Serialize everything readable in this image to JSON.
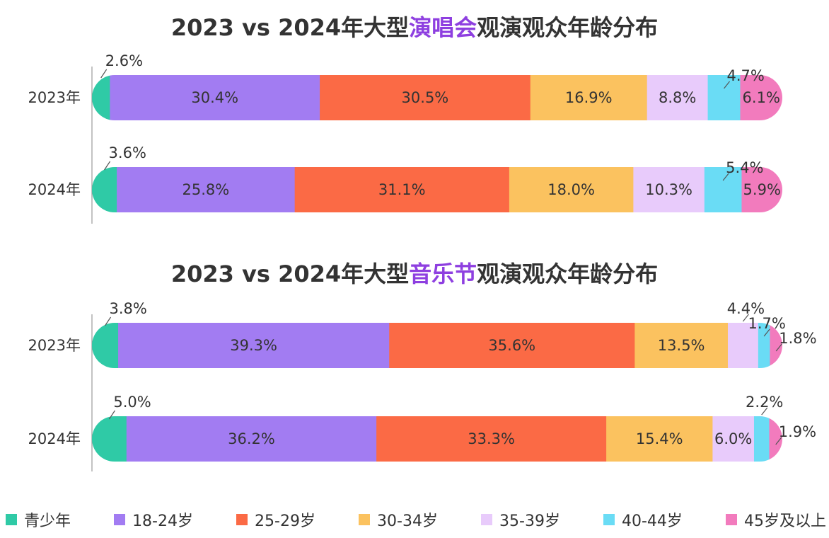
{
  "chart_data": [
    {
      "type": "bar",
      "title_parts": [
        "2023 vs 2024年大型",
        "演唱会",
        "观演观众年龄分布"
      ],
      "categories": [
        "2023年",
        "2024年"
      ],
      "series": [
        {
          "name": "青少年",
          "values": [
            2.6,
            3.6
          ]
        },
        {
          "name": "18-24岁",
          "values": [
            30.4,
            25.8
          ]
        },
        {
          "name": "25-29岁",
          "values": [
            30.5,
            31.1
          ]
        },
        {
          "name": "30-34岁",
          "values": [
            16.9,
            18.0
          ]
        },
        {
          "name": "35-39岁",
          "values": [
            8.8,
            10.3
          ]
        },
        {
          "name": "40-44岁",
          "values": [
            4.7,
            5.4
          ]
        },
        {
          "name": "45岁及以上",
          "values": [
            6.1,
            5.9
          ]
        }
      ],
      "labels": [
        [
          "2.6%",
          "30.4%",
          "30.5%",
          "16.9%",
          "8.8%",
          "4.7%",
          "6.1%"
        ],
        [
          "3.6%",
          "25.8%",
          "31.1%",
          "18.0%",
          "10.3%",
          "5.4%",
          "5.9%"
        ]
      ],
      "stacked": true,
      "orientation": "horizontal",
      "xlim": [
        0,
        100
      ]
    },
    {
      "type": "bar",
      "title_parts": [
        "2023 vs 2024年大型",
        "音乐节",
        "观演观众年龄分布"
      ],
      "categories": [
        "2023年",
        "2024年"
      ],
      "series": [
        {
          "name": "青少年",
          "values": [
            3.8,
            5.0
          ]
        },
        {
          "name": "18-24岁",
          "values": [
            39.3,
            36.2
          ]
        },
        {
          "name": "25-29岁",
          "values": [
            35.6,
            33.3
          ]
        },
        {
          "name": "30-34岁",
          "values": [
            13.5,
            15.4
          ]
        },
        {
          "name": "35-39岁",
          "values": [
            4.4,
            6.0
          ]
        },
        {
          "name": "40-44岁",
          "values": [
            1.7,
            2.2
          ]
        },
        {
          "name": "45岁及以上",
          "values": [
            1.8,
            1.9
          ]
        }
      ],
      "labels": [
        [
          "3.8%",
          "39.3%",
          "35.6%",
          "13.5%",
          "4.4%",
          "1.7%",
          "1.8%"
        ],
        [
          "5.0%",
          "36.2%",
          "33.3%",
          "15.4%",
          "6.0%",
          "2.2%",
          "1.9%"
        ]
      ],
      "stacked": true,
      "orientation": "horizontal",
      "xlim": [
        0,
        100
      ]
    }
  ],
  "legend": {
    "items": [
      "青少年",
      "18-24岁",
      "25-29岁",
      "30-34岁",
      "35-39岁",
      "40-44岁",
      "45岁及以上"
    ],
    "placement": "bottom"
  },
  "colors": {
    "segments": [
      "#2fcaa6",
      "#a27cf2",
      "#fb6a45",
      "#fbc25f",
      "#e8cbfb",
      "#6adcf5",
      "#f27bbd"
    ],
    "highlight": "#8e3fe0",
    "text": "#333333"
  }
}
